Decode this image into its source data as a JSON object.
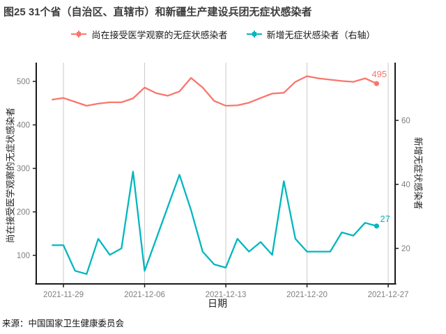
{
  "title": "图25 31个省（自治区、直辖市）和新疆生产建设兵团无症状感染者",
  "source": "来源：中国国家卫生健康委员会",
  "legend": {
    "items": [
      {
        "label": "尚在接受医学观察的无症状感染者",
        "color": "#F8766D",
        "marker": "line-with-square-point"
      },
      {
        "label": "新增无症状感染者（右轴）",
        "color": "#00B7BD",
        "marker": "line-with-square-point"
      }
    ]
  },
  "colors": {
    "red_series": "#F8766D",
    "teal_series": "#00B7BD",
    "gridline": "#c9c9c9",
    "axis_line": "#1a1a1a",
    "tick_label": "#7f7f7f",
    "title_text": "#3d3d3d"
  },
  "chart_data": {
    "type": "line",
    "title": "图25 31个省（自治区、直辖市）和新疆生产建设兵团无症状感染者",
    "xlabel": "日期",
    "ylabel_left": "尚在接受医学观察的无症状感染者",
    "ylabel_right": "新增无症状感染者",
    "grid": "vertical-only",
    "legend_position": "top-center",
    "x_tick_labels": [
      "2021-11-29",
      "2021-12-06",
      "2021-12-13",
      "2021-12-20",
      "2021-12-27"
    ],
    "left_ticks": [
      100,
      200,
      300,
      400,
      500
    ],
    "right_ticks": [
      20,
      40,
      60
    ],
    "left_axis_range": [
      60,
      545
    ],
    "right_axis_range": [
      9,
      70
    ],
    "dates": [
      "2021-11-28",
      "2021-11-29",
      "2021-11-30",
      "2021-12-01",
      "2021-12-02",
      "2021-12-03",
      "2021-12-04",
      "2021-12-05",
      "2021-12-06",
      "2021-12-07",
      "2021-12-08",
      "2021-12-09",
      "2021-12-10",
      "2021-12-11",
      "2021-12-12",
      "2021-12-13",
      "2021-12-14",
      "2021-12-15",
      "2021-12-16",
      "2021-12-17",
      "2021-12-18",
      "2021-12-19",
      "2021-12-20",
      "2021-12-21",
      "2021-12-22",
      "2021-12-23",
      "2021-12-24",
      "2021-12-25",
      "2021-12-26"
    ],
    "series": [
      {
        "name": "尚在接受医学观察的无症状感染者",
        "axis": "left",
        "color": "#F8766D",
        "end_label": "495",
        "values": [
          458,
          462,
          453,
          444,
          449,
          452,
          452,
          461,
          486,
          473,
          467,
          477,
          508,
          486,
          455,
          444,
          445,
          451,
          462,
          472,
          474,
          499,
          512,
          507,
          504,
          501,
          499,
          507,
          495
        ]
      },
      {
        "name": "新增无症状感染者（右轴）",
        "axis": "right",
        "color": "#00B7BD",
        "end_label": "27",
        "values": [
          21,
          21,
          13,
          12,
          23,
          18,
          20,
          44,
          13,
          23,
          33,
          43,
          32,
          19,
          15,
          14,
          23,
          19,
          22,
          18,
          41,
          23,
          19,
          19,
          19,
          25,
          24,
          28,
          27
        ]
      }
    ]
  }
}
